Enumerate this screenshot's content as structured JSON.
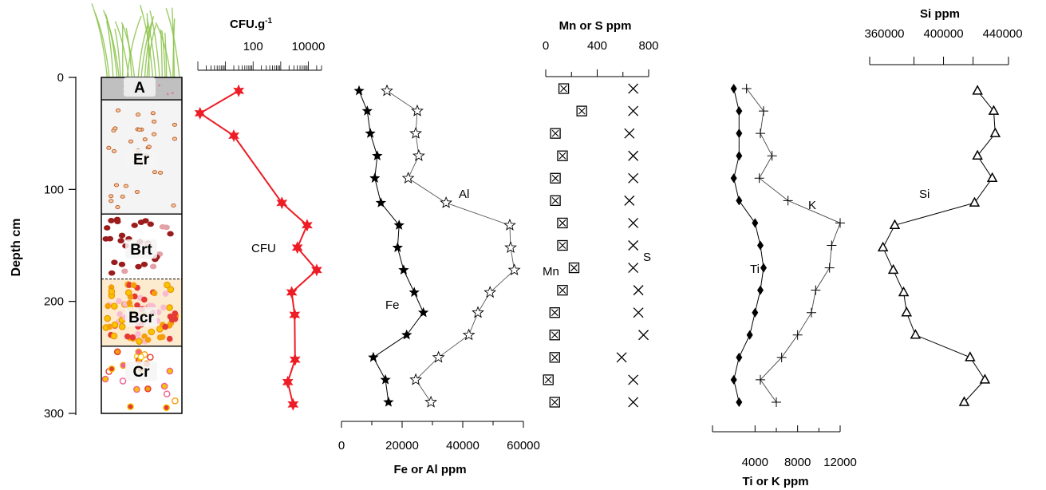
{
  "depth_axis": {
    "label": "Depth cm",
    "ticks": [
      0,
      100,
      200,
      300
    ]
  },
  "horizons": [
    {
      "name": "A",
      "top": 0,
      "bottom": 20
    },
    {
      "name": "Er",
      "top": 20,
      "bottom": 122
    },
    {
      "name": "Brt",
      "top": 122,
      "bottom": 180
    },
    {
      "name": "Bcr",
      "top": 180,
      "bottom": 240
    },
    {
      "name": "Cr",
      "top": 240,
      "bottom": 300
    }
  ],
  "colors": {
    "cfu": "#ee1c25",
    "ink": "#000000",
    "grass": "#8bc34a",
    "horizon_a": "#c0c0c0",
    "horizon_er": "#ececec",
    "dot_brown": "#c0602a",
    "dot_maroon": "#9b1c1c",
    "dot_yellow": "#f6c400"
  },
  "chart_data": [
    {
      "type": "line",
      "title": "CFU.g-1",
      "title_main": "CFU.g",
      "title_sup": "-1",
      "x_scale": "log",
      "xlim": [
        1,
        30000
      ],
      "tick_labels": [
        "100",
        "10000"
      ],
      "tick_values": [
        100,
        10000
      ],
      "series": [
        {
          "name": "CFU",
          "depth": [
            12,
            32,
            52,
            112,
            132,
            152,
            172,
            192,
            212,
            252,
            272,
            292
          ],
          "values": [
            30,
            1.2,
            20,
            1100,
            9000,
            4000,
            20000,
            2500,
            3200,
            3300,
            1800,
            2800
          ]
        }
      ]
    },
    {
      "type": "line",
      "xlabel": "Fe or Al ppm",
      "xlim": [
        0,
        60000
      ],
      "ticks": [
        0,
        20000,
        40000,
        60000
      ],
      "series": [
        {
          "name": "Fe",
          "depth": [
            12,
            30,
            50,
            70,
            90,
            112,
            132,
            152,
            172,
            192,
            210,
            230,
            250,
            270,
            290
          ],
          "values": [
            5800,
            8500,
            9500,
            11800,
            11000,
            13000,
            19000,
            18500,
            20500,
            24000,
            27000,
            21500,
            10500,
            14500,
            15500
          ]
        },
        {
          "name": "Al",
          "depth": [
            12,
            30,
            50,
            70,
            90,
            112,
            132,
            152,
            172,
            192,
            210,
            230,
            250,
            270,
            290
          ],
          "values": [
            15000,
            25000,
            24500,
            25500,
            22000,
            34500,
            55500,
            55800,
            57000,
            49000,
            45000,
            42000,
            32000,
            24500,
            29500
          ]
        }
      ]
    },
    {
      "type": "scatter",
      "title": "Mn or S ppm",
      "xlim": [
        0,
        800
      ],
      "ticks": [
        0,
        400,
        800
      ],
      "series": [
        {
          "name": "Mn",
          "depth": [
            10,
            30,
            50,
            70,
            90,
            110,
            130,
            150,
            170,
            190,
            210,
            230,
            250,
            270,
            290
          ],
          "values": [
            140,
            280,
            75,
            130,
            75,
            75,
            130,
            130,
            220,
            130,
            70,
            70,
            70,
            20,
            70
          ]
        },
        {
          "name": "S",
          "depth": [
            10,
            30,
            50,
            70,
            90,
            110,
            130,
            150,
            170,
            190,
            210,
            230,
            250,
            270,
            290
          ],
          "values": [
            680,
            680,
            650,
            680,
            680,
            650,
            680,
            680,
            680,
            720,
            720,
            760,
            590,
            680,
            680
          ]
        }
      ]
    },
    {
      "type": "line",
      "xlabel": "Ti or K ppm",
      "xlim": [
        0,
        12000
      ],
      "ticks": [
        4000,
        8000,
        12000
      ],
      "series": [
        {
          "name": "Ti",
          "depth": [
            10,
            30,
            50,
            70,
            90,
            110,
            130,
            150,
            170,
            190,
            210,
            230,
            250,
            270,
            290
          ],
          "values": [
            2000,
            2500,
            2500,
            2500,
            2000,
            2500,
            4000,
            4500,
            4800,
            4500,
            4000,
            3500,
            2500,
            2000,
            2500
          ]
        },
        {
          "name": "K",
          "depth": [
            10,
            30,
            50,
            70,
            90,
            110,
            130,
            150,
            170,
            190,
            210,
            230,
            250,
            270,
            290
          ],
          "values": [
            3200,
            4800,
            4500,
            5600,
            4400,
            7100,
            12000,
            11200,
            11000,
            9700,
            9300,
            8000,
            6500,
            4500,
            6000
          ]
        }
      ]
    },
    {
      "type": "line",
      "title": "Si ppm",
      "xlim": [
        350000,
        444000
      ],
      "ticks": [
        360000,
        400000,
        440000
      ],
      "series": [
        {
          "name": "Si",
          "depth": [
            12,
            30,
            50,
            70,
            90,
            112,
            132,
            152,
            172,
            192,
            210,
            230,
            250,
            270,
            290
          ],
          "values": [
            423000,
            434000,
            435000,
            423000,
            433000,
            421000,
            367000,
            359000,
            366000,
            373000,
            375000,
            381000,
            418000,
            428000,
            414000
          ]
        }
      ]
    }
  ]
}
